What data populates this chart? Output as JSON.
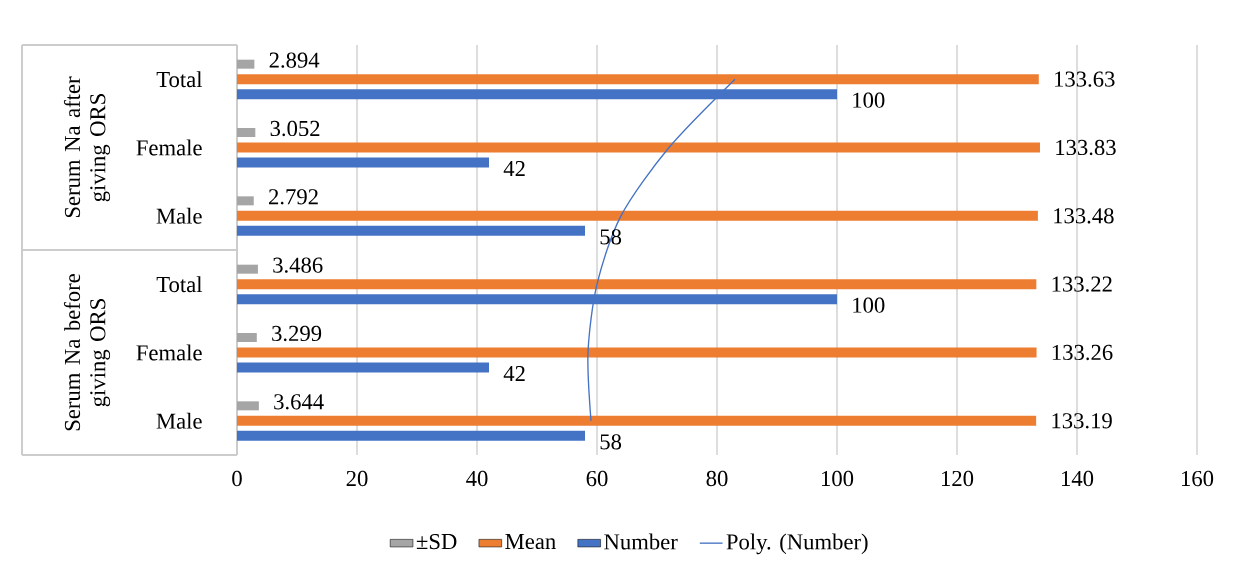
{
  "chart_data": {
    "type": "bar",
    "orientation": "horizontal",
    "categories": [
      "Total",
      "Female",
      "Male",
      "Total",
      "Female",
      "Male"
    ],
    "annotations": [
      "Serum Na after giving ORS",
      "Serum Na before giving ORS"
    ],
    "series": [
      {
        "name": "±SD",
        "color": "#a5a5a5",
        "values": [
          2.894,
          3.052,
          2.792,
          3.486,
          3.299,
          3.644
        ],
        "value_labels": [
          "2.894",
          "3.052",
          "2.792",
          "3.486",
          "3.299",
          "3.644"
        ]
      },
      {
        "name": "Mean",
        "color": "#ed7d31",
        "values": [
          133.63,
          133.83,
          133.48,
          133.22,
          133.26,
          133.19
        ],
        "value_labels": [
          "133.63",
          "133.83",
          "133.48",
          "133.22",
          "133.26",
          "133.19"
        ]
      },
      {
        "name": "Number",
        "color": "#4472c4",
        "values": [
          100,
          42,
          58,
          100,
          42,
          58
        ],
        "value_labels": [
          "100",
          "42",
          "58",
          "100",
          "42",
          "58"
        ]
      },
      {
        "name": "Poly. (Number)",
        "type": "line",
        "color": "#4472c4",
        "values": [
          83,
          72,
          64,
          60,
          58.5,
          59
        ]
      }
    ],
    "xlim": [
      0,
      160
    ],
    "xticks": [
      0,
      20,
      40,
      60,
      80,
      100,
      120,
      140,
      160
    ],
    "grid": "x",
    "legend": "bottom"
  }
}
